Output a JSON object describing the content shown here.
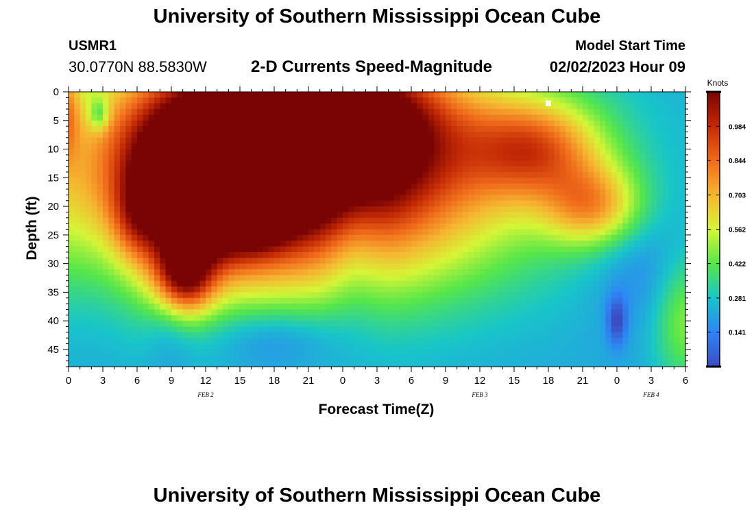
{
  "header": {
    "title": "University of Southern Mississippi Ocean Cube",
    "station_id": "USMR1",
    "coords": "30.0770N  88.5830W",
    "plot_title": "2-D Currents Speed-Magnitude",
    "model_label": "Model Start Time",
    "model_time": "02/02/2023 Hour 09"
  },
  "footer": {
    "title": "University of Southern Mississippi Ocean Cube"
  },
  "chart_data": {
    "type": "heatmap",
    "title": "2-D Currents Speed-Magnitude",
    "xlabel": "Forecast Time(Z)",
    "ylabel": "Depth (ft)",
    "x_tick_labels": [
      "0",
      "3",
      "6",
      "9",
      "12",
      "15",
      "18",
      "21",
      "0",
      "3",
      "6",
      "9",
      "12",
      "15",
      "18",
      "21",
      "0",
      "3",
      "6"
    ],
    "x_ticks_hours": [
      0,
      3,
      6,
      9,
      12,
      15,
      18,
      21,
      24,
      27,
      30,
      33,
      36,
      39,
      42,
      45,
      48,
      51,
      54
    ],
    "date_labels": [
      {
        "text": "FEB 2",
        "hour": 12
      },
      {
        "text": "FEB 3",
        "hour": 36
      },
      {
        "text": "FEB 4",
        "hour": 51
      }
    ],
    "xlim": [
      0,
      54
    ],
    "y_ticks": [
      0,
      5,
      10,
      15,
      20,
      25,
      30,
      35,
      40,
      45
    ],
    "ylim": [
      0,
      48
    ],
    "y_inverted": true,
    "colorbar": {
      "label": "Knots",
      "ticks": [
        "0.141",
        "0.281",
        "0.422",
        "0.562",
        "0.703",
        "0.844",
        "0.984"
      ],
      "tick_values": [
        0.141,
        0.281,
        0.422,
        0.562,
        0.703,
        0.844,
        0.984
      ],
      "range": [
        0,
        1.125
      ],
      "colors": [
        "#3b4cc0",
        "#2f84f5",
        "#18c5c9",
        "#56e64a",
        "#d6f536",
        "#f6b531",
        "#f06b1b",
        "#c42a05",
        "#7a0403"
      ]
    },
    "z_units": "Knots",
    "grid": false,
    "base_value": 0.22,
    "features": [
      {
        "hour": 18,
        "depth": 14,
        "value": 1.1,
        "sh": 14,
        "sd": 14
      },
      {
        "hour": 21,
        "depth": 5,
        "value": 0.9,
        "sh": 7,
        "sd": 8
      },
      {
        "hour": 12,
        "depth": 16,
        "value": 0.75,
        "sh": 3.8,
        "sd": 8
      },
      {
        "hour": 10,
        "depth": 32,
        "value": 0.65,
        "sh": 1.8,
        "sd": 5
      },
      {
        "hour": 41,
        "depth": 10,
        "value": 0.45,
        "sh": 4,
        "sd": 6
      },
      {
        "hour": 46,
        "depth": 20,
        "value": 0.42,
        "sh": 3,
        "sd": 5
      },
      {
        "hour": 54,
        "depth": 40,
        "value": 0.25,
        "sh": 2,
        "sd": 8
      },
      {
        "hour": 0,
        "depth": 3,
        "value": 0.25,
        "sh": 0.7,
        "sd": 6
      },
      {
        "hour": 6,
        "depth": 22,
        "value": 0.2,
        "sh": 1.5,
        "sd": 5
      },
      {
        "hour": 16.5,
        "depth": 21,
        "value": 0.28,
        "sh": 2,
        "sd": 4
      },
      {
        "hour": 2.7,
        "depth": 4,
        "value": -0.25,
        "sh": 0.6,
        "sd": 2
      },
      {
        "hour": 48,
        "depth": 40,
        "value": -0.22,
        "sh": 0.6,
        "sd": 3
      },
      {
        "hour": 25,
        "depth": 24,
        "value": -0.13,
        "sh": 1.8,
        "sd": 10
      },
      {
        "hour": 3,
        "depth": 20,
        "value": -0.09,
        "sh": 2.5,
        "sd": 14
      },
      {
        "hour": 9,
        "depth": 36,
        "value": -0.12,
        "sh": 1.5,
        "sd": 8
      },
      {
        "hour": 18,
        "depth": 43,
        "value": -0.13,
        "sh": 4,
        "sd": 4
      },
      {
        "hour": 50,
        "depth": 30,
        "value": -0.1,
        "sh": 3,
        "sd": 8
      }
    ],
    "marker": {
      "hour": 42,
      "depth": 2,
      "color": "#ffffff"
    }
  },
  "colors": {
    "background": "#ffffff",
    "axis": "#000000"
  }
}
